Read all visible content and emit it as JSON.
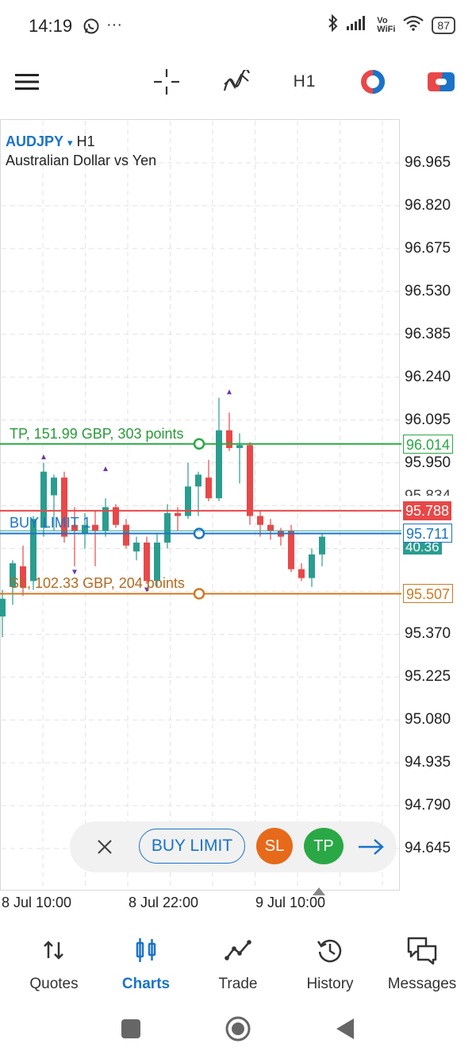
{
  "status_bar": {
    "time": "14:19",
    "left_icons": [
      "whatsapp-icon",
      "more-dots-icon"
    ],
    "right_icons": [
      "bluetooth-icon",
      "signal-icon",
      "vowifi-icon",
      "wifi-icon"
    ],
    "vowifi_top": "Vo",
    "vowifi_bottom": "WiFi",
    "battery": "87"
  },
  "toolbar": {
    "timeframe": "H1",
    "icons": [
      "menu-icon",
      "crosshair-icon",
      "indicators-icon",
      "timeframe",
      "chart-color-icon",
      "trade-toggle-icon"
    ]
  },
  "chart": {
    "symbol": "AUDJPY",
    "symbol_caret": "▾",
    "timeframe": "H1",
    "description": "Australian Dollar vs Yen",
    "price_axis": [
      "96.965",
      "96.820",
      "96.675",
      "96.530",
      "96.385",
      "96.240",
      "96.095",
      "95.950",
      "95.370",
      "95.225",
      "95.080",
      "94.935",
      "94.790",
      "94.645"
    ],
    "time_axis": [
      "8 Jul 10:00",
      "8 Jul 22:00",
      "9 Jul 10:00"
    ],
    "tp_line": {
      "label": "TP, 151.99 GBP, 303 points",
      "price": "96.014",
      "color": "#2aa845"
    },
    "buy_limit_line": {
      "label": "BUY LIMIT 1",
      "price": "95.711",
      "color": "#1a73c9"
    },
    "sl_line": {
      "label": "SL, 102.33 GBP, 204 points",
      "price": "95.507",
      "color": "#d07a22"
    },
    "ask_price": {
      "value": "95.788",
      "color": "#e84848"
    },
    "bid_partial": "40.36",
    "hidden_partial": "95.834"
  },
  "chart_data": {
    "type": "candlestick",
    "timeframe": "H1",
    "ylim": [
      94.6,
      97.05
    ],
    "candles": [
      {
        "o": 95.43,
        "h": 95.52,
        "l": 95.36,
        "c": 95.49
      },
      {
        "o": 95.53,
        "h": 95.62,
        "l": 95.47,
        "c": 95.61
      },
      {
        "o": 95.6,
        "h": 95.67,
        "l": 95.5,
        "c": 95.53
      },
      {
        "o": 95.55,
        "h": 95.77,
        "l": 95.52,
        "c": 95.76
      },
      {
        "o": 95.73,
        "h": 95.95,
        "l": 95.7,
        "c": 95.92
      },
      {
        "o": 95.84,
        "h": 95.91,
        "l": 95.72,
        "c": 95.9
      },
      {
        "o": 95.9,
        "h": 95.92,
        "l": 95.68,
        "c": 95.7
      },
      {
        "o": 95.74,
        "h": 95.8,
        "l": 95.6,
        "c": 95.72
      },
      {
        "o": 95.71,
        "h": 95.78,
        "l": 95.66,
        "c": 95.74
      },
      {
        "o": 95.74,
        "h": 95.79,
        "l": 95.6,
        "c": 95.72
      },
      {
        "o": 95.72,
        "h": 95.83,
        "l": 95.7,
        "c": 95.8
      },
      {
        "o": 95.8,
        "h": 95.81,
        "l": 95.73,
        "c": 95.74
      },
      {
        "o": 95.74,
        "h": 95.76,
        "l": 95.66,
        "c": 95.67
      },
      {
        "o": 95.65,
        "h": 95.7,
        "l": 95.62,
        "c": 95.68
      },
      {
        "o": 95.68,
        "h": 95.7,
        "l": 95.54,
        "c": 95.55
      },
      {
        "o": 95.55,
        "h": 95.71,
        "l": 95.53,
        "c": 95.68
      },
      {
        "o": 95.68,
        "h": 95.81,
        "l": 95.66,
        "c": 95.78
      },
      {
        "o": 95.78,
        "h": 95.8,
        "l": 95.72,
        "c": 95.77
      },
      {
        "o": 95.77,
        "h": 95.95,
        "l": 95.76,
        "c": 95.87
      },
      {
        "o": 95.87,
        "h": 95.92,
        "l": 95.77,
        "c": 95.91
      },
      {
        "o": 95.9,
        "h": 95.96,
        "l": 95.82,
        "c": 95.83
      },
      {
        "o": 95.83,
        "h": 96.17,
        "l": 95.82,
        "c": 96.06
      },
      {
        "o": 96.06,
        "h": 96.12,
        "l": 95.99,
        "c": 96.0
      },
      {
        "o": 96.0,
        "h": 96.05,
        "l": 95.88,
        "c": 96.01
      },
      {
        "o": 96.01,
        "h": 96.02,
        "l": 95.74,
        "c": 95.77
      },
      {
        "o": 95.77,
        "h": 95.79,
        "l": 95.7,
        "c": 95.74
      },
      {
        "o": 95.74,
        "h": 95.76,
        "l": 95.69,
        "c": 95.72
      },
      {
        "o": 95.72,
        "h": 95.73,
        "l": 95.67,
        "c": 95.7
      },
      {
        "o": 95.72,
        "h": 95.74,
        "l": 95.58,
        "c": 95.59
      },
      {
        "o": 95.59,
        "h": 95.61,
        "l": 95.55,
        "c": 95.56
      },
      {
        "o": 95.56,
        "h": 95.66,
        "l": 95.53,
        "c": 95.64
      },
      {
        "o": 95.64,
        "h": 95.71,
        "l": 95.6,
        "c": 95.7
      }
    ],
    "lines": [
      {
        "name": "TP",
        "price": 96.014
      },
      {
        "name": "BUY LIMIT",
        "price": 95.711
      },
      {
        "name": "SL",
        "price": 95.507
      },
      {
        "name": "Ask",
        "price": 95.788
      }
    ]
  },
  "order_pill": {
    "close_icon": "close-icon",
    "buy_limit": "BUY LIMIT",
    "sl": "SL",
    "tp": "TP",
    "confirm_icon": "arrow-right-icon"
  },
  "bottom_nav": {
    "items": [
      {
        "label": "Quotes",
        "icon": "quotes-icon",
        "active": false
      },
      {
        "label": "Charts",
        "icon": "charts-icon",
        "active": true
      },
      {
        "label": "Trade",
        "icon": "trade-icon",
        "active": false
      },
      {
        "label": "History",
        "icon": "history-icon",
        "active": false
      },
      {
        "label": "Messages",
        "icon": "messages-icon",
        "active": false
      }
    ]
  },
  "system_nav": [
    "recents-icon",
    "home-icon",
    "back-icon"
  ]
}
